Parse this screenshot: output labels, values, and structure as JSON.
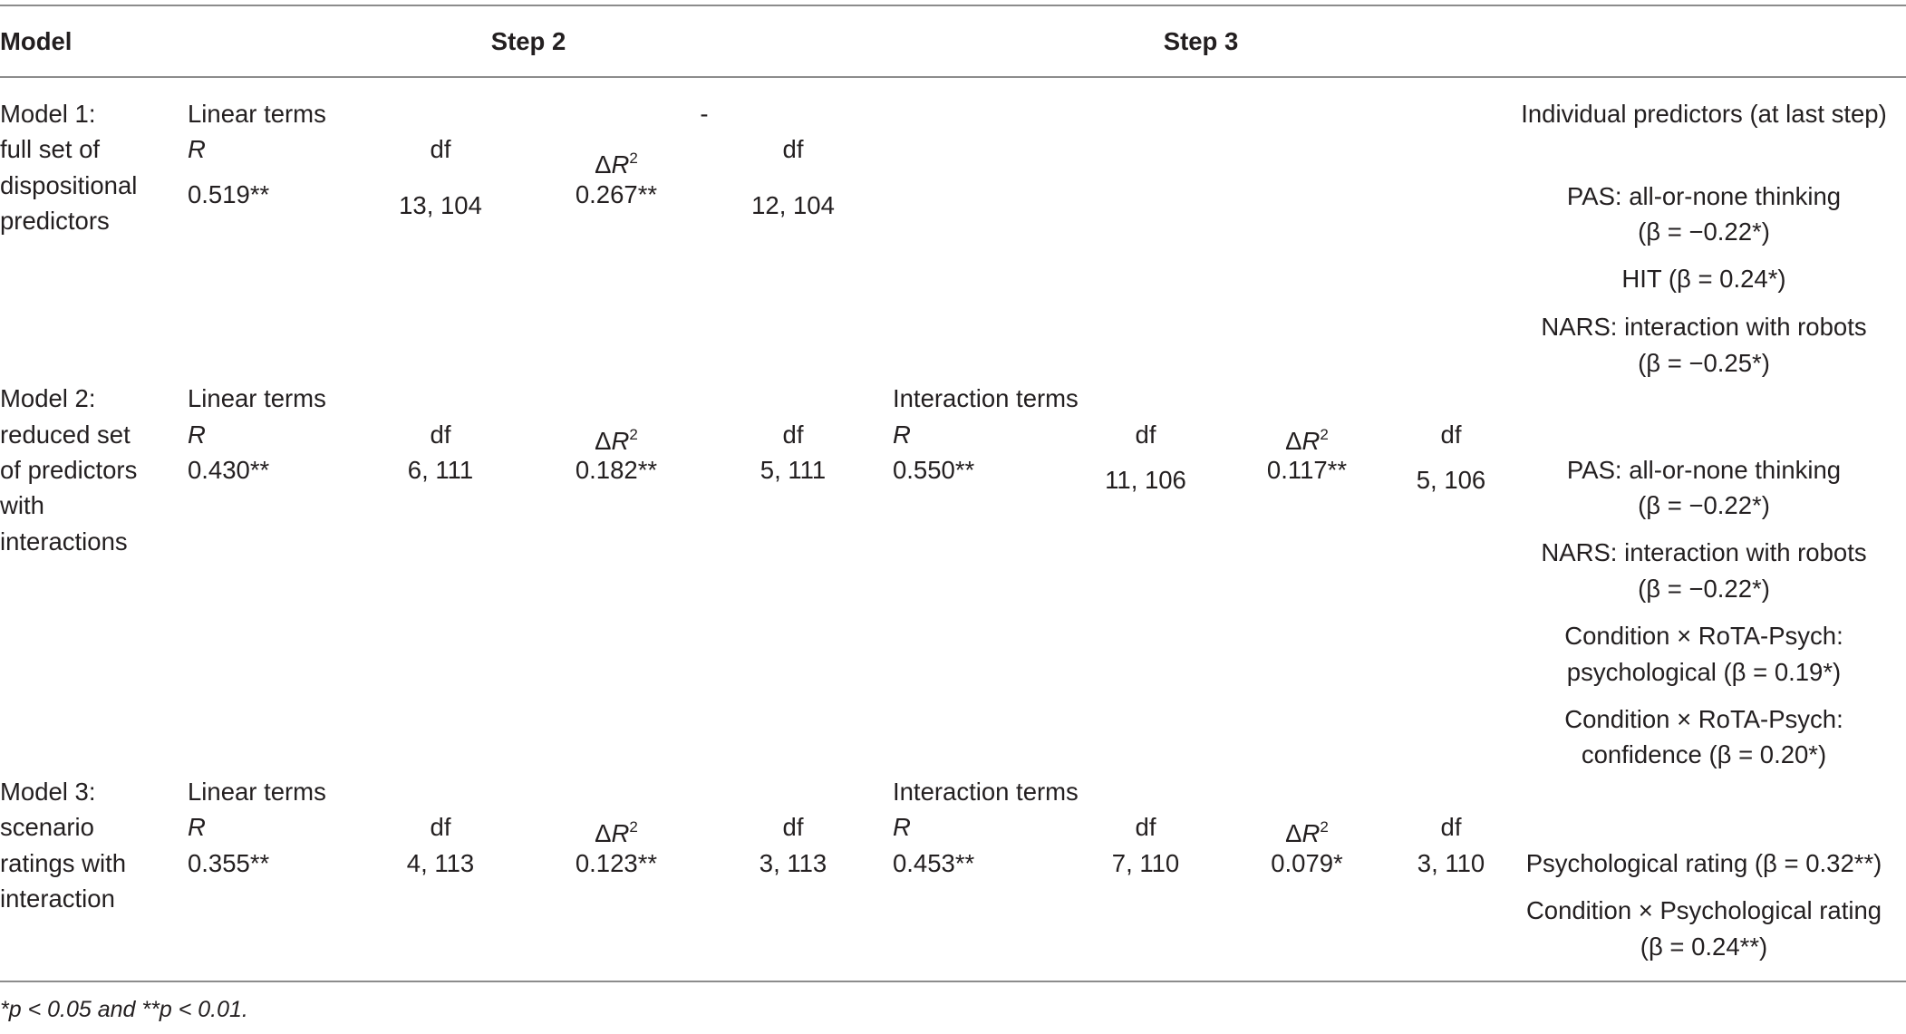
{
  "header": {
    "model": "Model",
    "step2": "Step 2",
    "step3": "Step 3"
  },
  "labels": {
    "linear_terms": "Linear terms",
    "interaction_terms": "Interaction terms",
    "r": "R",
    "df": "df",
    "delta": "Δ",
    "r2_base": "R",
    "r2_sup": "2",
    "dash": "-",
    "individual_predictors": "Individual predictors (at last step)"
  },
  "rows": [
    {
      "model": [
        "Model 1:",
        "full set of",
        "dispositional",
        "predictors"
      ],
      "step2": {
        "r": "0.519**",
        "r_df": "13, 104",
        "dr2": "0.267**",
        "dr2_df": "12, 104"
      },
      "predictors": [
        [
          "PAS: all-or-none thinking",
          "(β = −0.22*)"
        ],
        [
          "HIT (β = 0.24*)"
        ],
        [
          "NARS: interaction with robots",
          "(β = −0.25*)"
        ]
      ]
    },
    {
      "model": [
        "Model 2:",
        "reduced set",
        "of predictors",
        "with",
        "interactions"
      ],
      "step2": {
        "r": "0.430**",
        "r_df": "6, 111",
        "dr2": "0.182**",
        "dr2_df": "5, 111"
      },
      "step3": {
        "r": "0.550**",
        "r_df": "11, 106",
        "dr2": "0.117**",
        "dr2_df": "5, 106"
      },
      "predictors": [
        [
          "PAS: all-or-none thinking",
          "(β = −0.22*)"
        ],
        [
          "NARS: interaction with robots",
          "(β = −0.22*)"
        ],
        [
          "Condition × RoTA-Psych:",
          "psychological (β = 0.19*)"
        ],
        [
          "Condition × RoTA-Psych:",
          "confidence (β = 0.20*)"
        ]
      ]
    },
    {
      "model": [
        "Model 3:",
        "scenario",
        "ratings with",
        "interaction"
      ],
      "step2": {
        "r": "0.355**",
        "r_df": "4, 113",
        "dr2": "0.123**",
        "dr2_df": "3, 113"
      },
      "step3": {
        "r": "0.453**",
        "r_df": "7, 110",
        "dr2": "0.079*",
        "dr2_df": "3, 110"
      },
      "predictors": [
        [
          "Psychological rating (β = 0.32**)"
        ],
        [
          "Condition × Psychological rating",
          "(β = 0.24**)"
        ]
      ]
    }
  ],
  "footnote": "*p < 0.05 and **p < 0.01."
}
